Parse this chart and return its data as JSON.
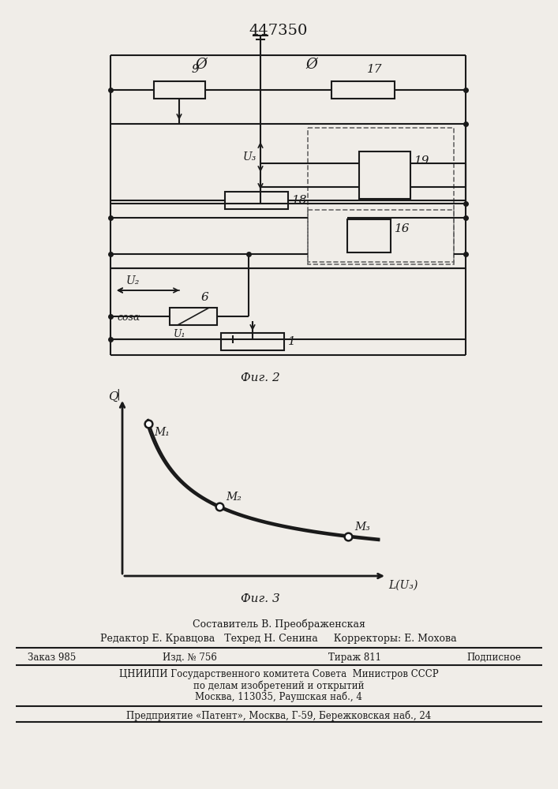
{
  "title": "447350",
  "fig2_label": "Фиг. 2",
  "fig3_label": "Фиг. 3",
  "bg_color": "#f0ede8",
  "line_color": "#1a1a1a"
}
